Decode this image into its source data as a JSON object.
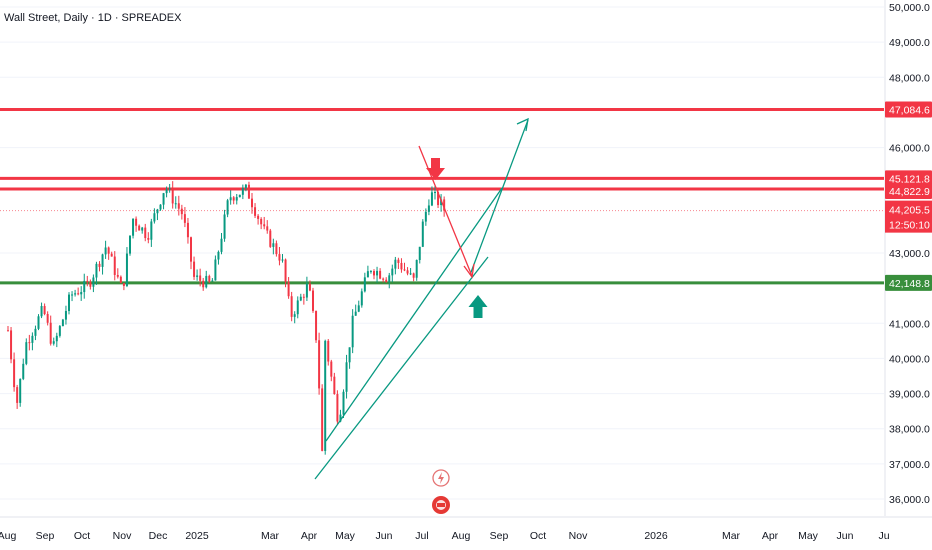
{
  "header": {
    "title": "Wall Street, Daily · 1D · SPREADEX"
  },
  "price_axis": {
    "ticks": [
      "50,000.0",
      "49,000.0",
      "48,000.0",
      "46,000.0",
      "43,000.0",
      "41,000.0",
      "40,000.0",
      "39,000.0",
      "38,000.0",
      "37,000.0",
      "36,000.0"
    ]
  },
  "time_axis": {
    "labels": [
      "Aug",
      "Sep",
      "Oct",
      "Nov",
      "Dec",
      "2025",
      "Mar",
      "Apr",
      "May",
      "Jun",
      "Jul",
      "Aug",
      "Sep",
      "Oct",
      "Nov",
      "2026",
      "Mar",
      "Apr",
      "May",
      "Jun",
      "Ju"
    ]
  },
  "price_tags": {
    "resistance_top": "47,084.6",
    "resistance_1": "45,121.8",
    "resistance_2": "44,822.9",
    "last_price": "44,205.5",
    "countdown": "12:50:10",
    "support": "42,148.8"
  },
  "colors": {
    "up": "#089981",
    "down": "#f23645",
    "resistance": "#f23645",
    "support": "#388e3c",
    "trend": "#089981",
    "arrow_down": "#f23645",
    "arrow_up": "#089981",
    "last_price": "#f23645"
  },
  "chart_data": {
    "type": "candlestick",
    "title": "Wall Street, Daily · 1D · SPREADEX",
    "ylim": [
      35800,
      50100
    ],
    "y_ticks": [
      50000,
      49000,
      48000,
      46000,
      43000,
      41000,
      40000,
      39000,
      38000,
      37000,
      36000
    ],
    "x_labels": [
      "Aug",
      "Sep",
      "Oct",
      "Nov",
      "Dec",
      "2025",
      "Mar",
      "Apr",
      "May",
      "Jun",
      "Jul",
      "Aug",
      "Sep",
      "Oct",
      "Nov",
      "2026",
      "Mar",
      "Apr",
      "May",
      "Jun",
      "Ju"
    ],
    "horizontal_levels": [
      {
        "price": 47084.6,
        "label": "47,084.6",
        "color": "#f23645"
      },
      {
        "price": 45121.8,
        "label": "45,121.8",
        "color": "#f23645"
      },
      {
        "price": 44822.9,
        "label": "44,822.9",
        "color": "#f23645"
      },
      {
        "price": 42148.8,
        "label": "42,148.8",
        "color": "#388e3c"
      }
    ],
    "last_price": 44205.5,
    "countdown": "12:50:10",
    "path_points": [
      {
        "date": "2024-08-01",
        "close": 40800
      },
      {
        "date": "2024-08-08",
        "close": 38700
      },
      {
        "date": "2024-08-15",
        "close": 40400
      },
      {
        "date": "2024-08-29",
        "close": 41400
      },
      {
        "date": "2024-09-06",
        "close": 40300
      },
      {
        "date": "2024-09-20",
        "close": 41800
      },
      {
        "date": "2024-10-04",
        "close": 42100
      },
      {
        "date": "2024-10-18",
        "close": 43200
      },
      {
        "date": "2024-10-31",
        "close": 41900
      },
      {
        "date": "2024-11-08",
        "close": 44000
      },
      {
        "date": "2024-11-20",
        "close": 43500
      },
      {
        "date": "2024-12-04",
        "close": 44900
      },
      {
        "date": "2024-12-18",
        "close": 44100
      },
      {
        "date": "2024-12-27",
        "close": 42300
      },
      {
        "date": "2025-01-10",
        "close": 42100
      },
      {
        "date": "2025-01-24",
        "close": 44600
      },
      {
        "date": "2025-02-07",
        "close": 44800
      },
      {
        "date": "2025-02-21",
        "close": 43600
      },
      {
        "date": "2025-03-07",
        "close": 42800
      },
      {
        "date": "2025-03-14",
        "close": 41200
      },
      {
        "date": "2025-03-28",
        "close": 42100
      },
      {
        "date": "2025-04-04",
        "close": 40400
      },
      {
        "date": "2025-04-08",
        "close": 37300
      },
      {
        "date": "2025-04-10",
        "close": 40600
      },
      {
        "date": "2025-04-21",
        "close": 38200
      },
      {
        "date": "2025-05-02",
        "close": 41000
      },
      {
        "date": "2025-05-16",
        "close": 42600
      },
      {
        "date": "2025-05-30",
        "close": 42300
      },
      {
        "date": "2025-06-06",
        "close": 42800
      },
      {
        "date": "2025-06-20",
        "close": 42200
      },
      {
        "date": "2025-06-27",
        "close": 43800
      },
      {
        "date": "2025-07-03",
        "close": 44700
      },
      {
        "date": "2025-07-11",
        "close": 44400
      },
      {
        "date": "2025-07-15",
        "close": 44205.5
      }
    ]
  }
}
